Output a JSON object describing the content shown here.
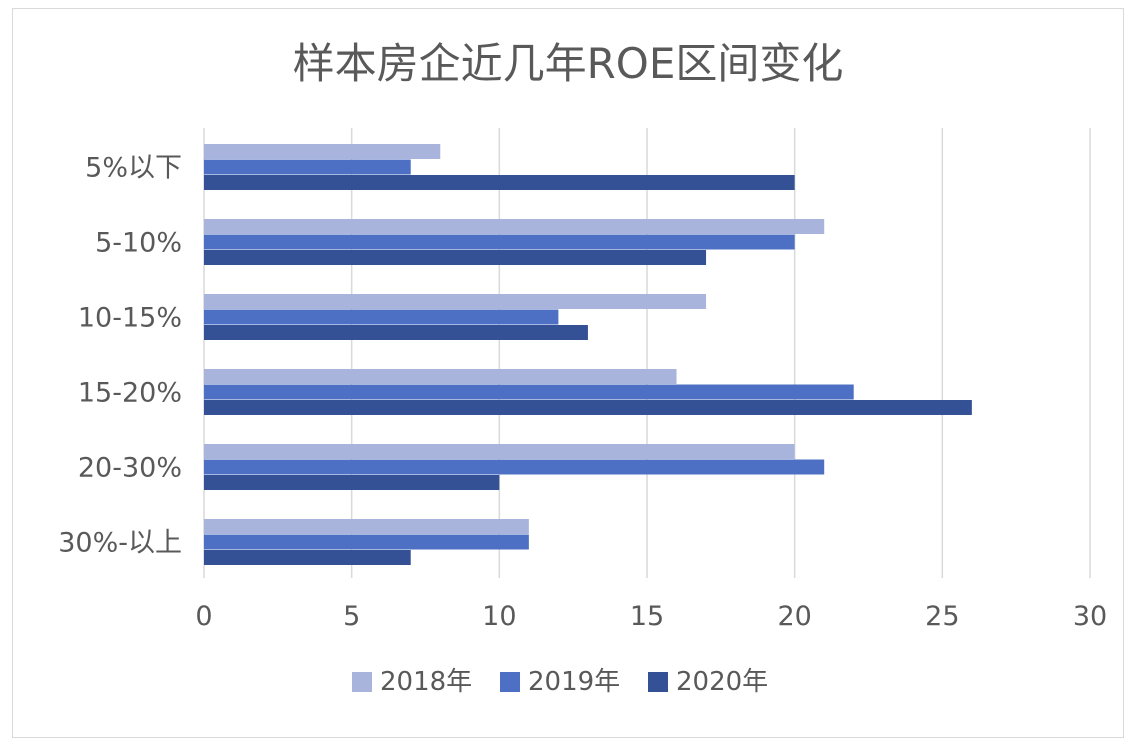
{
  "chart_data": {
    "type": "bar",
    "orientation": "horizontal",
    "title": "样本房企近几年ROE区间变化",
    "categories": [
      "5%以下",
      "5-10%",
      "10-15%",
      "15-20%",
      "20-30%",
      "30%-以上"
    ],
    "series": [
      {
        "name": "2018年",
        "color": "#a9b4dd",
        "values": [
          8,
          21,
          17,
          16,
          20,
          11
        ]
      },
      {
        "name": "2019年",
        "color": "#4e70c4",
        "values": [
          7,
          20,
          12,
          22,
          21,
          11
        ]
      },
      {
        "name": "2020年",
        "color": "#345196",
        "values": [
          20,
          17,
          13,
          26,
          10,
          7
        ]
      }
    ],
    "xlim": [
      0,
      30
    ],
    "xticks": [
      "0",
      "5",
      "10",
      "15",
      "20",
      "25",
      "30"
    ],
    "grid": true,
    "legend_position": "bottom"
  }
}
